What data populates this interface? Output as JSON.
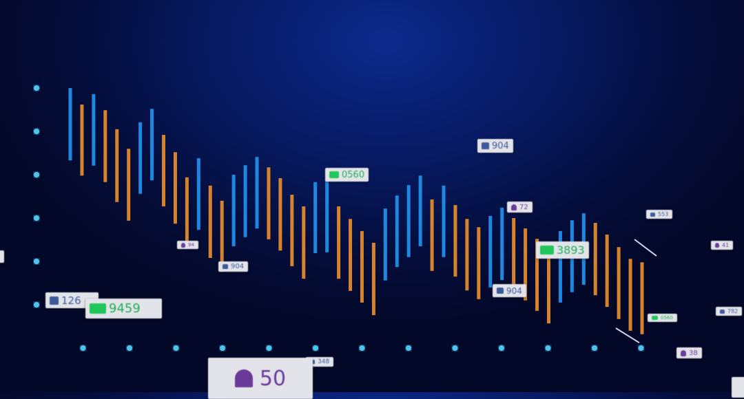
{
  "colors": {
    "up": "#1e88e0",
    "down": "#d5832c",
    "axis": "#4fc3ee",
    "background": "#050f45"
  },
  "chart_data": {
    "type": "bar",
    "title": "",
    "xlabel": "",
    "ylabel": "",
    "grid": false,
    "x_ticks": 13,
    "y_ticks": 6,
    "ylim": [
      0,
      7
    ],
    "bars": [
      {
        "color": "blue",
        "low": 4.33,
        "high": 6.0
      },
      {
        "color": "orange",
        "low": 3.98,
        "high": 5.62
      },
      {
        "color": "blue",
        "low": 4.21,
        "high": 5.86
      },
      {
        "color": "orange",
        "low": 3.83,
        "high": 5.49
      },
      {
        "color": "orange",
        "low": 3.37,
        "high": 5.05
      },
      {
        "color": "orange",
        "low": 2.94,
        "high": 4.6
      },
      {
        "color": "blue",
        "low": 3.56,
        "high": 5.21
      },
      {
        "color": "blue",
        "low": 3.87,
        "high": 5.52
      },
      {
        "color": "orange",
        "low": 3.27,
        "high": 4.92
      },
      {
        "color": "orange",
        "low": 2.87,
        "high": 4.52
      },
      {
        "color": "orange",
        "low": 2.44,
        "high": 3.94
      },
      {
        "color": "blue",
        "low": 2.73,
        "high": 4.38
      },
      {
        "color": "orange",
        "low": 2.08,
        "high": 3.75
      },
      {
        "color": "orange",
        "low": 1.76,
        "high": 3.4
      },
      {
        "color": "blue",
        "low": 2.35,
        "high": 4.0
      },
      {
        "color": "blue",
        "low": 2.56,
        "high": 4.22
      },
      {
        "color": "blue",
        "low": 2.76,
        "high": 4.41
      },
      {
        "color": "orange",
        "low": 2.51,
        "high": 4.17
      },
      {
        "color": "orange",
        "low": 2.25,
        "high": 3.92
      },
      {
        "color": "orange",
        "low": 1.89,
        "high": 3.54
      },
      {
        "color": "orange",
        "low": 1.6,
        "high": 3.27
      },
      {
        "color": "blue",
        "low": 2.19,
        "high": 3.83
      },
      {
        "color": "blue",
        "low": 2.21,
        "high": 3.87
      },
      {
        "color": "orange",
        "low": 1.6,
        "high": 3.27
      },
      {
        "color": "orange",
        "low": 1.32,
        "high": 2.98
      },
      {
        "color": "orange",
        "low": 1.05,
        "high": 2.7
      },
      {
        "color": "orange",
        "low": 0.76,
        "high": 2.43
      },
      {
        "color": "blue",
        "low": 1.56,
        "high": 3.22
      },
      {
        "color": "blue",
        "low": 1.87,
        "high": 3.52
      },
      {
        "color": "blue",
        "low": 2.1,
        "high": 3.76
      },
      {
        "color": "blue",
        "low": 2.35,
        "high": 3.98
      },
      {
        "color": "orange",
        "low": 1.78,
        "high": 3.43
      },
      {
        "color": "blue",
        "low": 2.1,
        "high": 3.75
      },
      {
        "color": "orange",
        "low": 1.65,
        "high": 3.3
      },
      {
        "color": "orange",
        "low": 1.33,
        "high": 2.98
      },
      {
        "color": "orange",
        "low": 1.13,
        "high": 2.79
      },
      {
        "color": "blue",
        "low": 1.4,
        "high": 3.05
      },
      {
        "color": "blue",
        "low": 1.57,
        "high": 3.24
      },
      {
        "color": "orange",
        "low": 1.37,
        "high": 3.0
      },
      {
        "color": "orange",
        "low": 1.1,
        "high": 2.76
      },
      {
        "color": "orange",
        "low": 0.86,
        "high": 2.52
      },
      {
        "color": "orange",
        "low": 0.57,
        "high": 2.24
      },
      {
        "color": "blue",
        "low": 1.05,
        "high": 2.7
      },
      {
        "color": "blue",
        "low": 1.29,
        "high": 2.95
      },
      {
        "color": "blue",
        "low": 1.46,
        "high": 3.11
      },
      {
        "color": "orange",
        "low": 1.22,
        "high": 2.89
      },
      {
        "color": "orange",
        "low": 0.95,
        "high": 2.62
      },
      {
        "color": "orange",
        "low": 0.67,
        "high": 2.33
      },
      {
        "color": "orange",
        "low": 0.4,
        "high": 2.06
      },
      {
        "color": "orange",
        "low": 0.32,
        "high": 1.98
      }
    ]
  },
  "badges": {
    "likes_904_top": {
      "icon": "thumbs-up-icon",
      "value": "904"
    },
    "comments_0560": {
      "icon": "comment-icon",
      "value": "0560"
    },
    "followers_72": {
      "icon": "user-icon",
      "value": "72"
    },
    "comments_3893": {
      "icon": "comment-icon",
      "value": "3893"
    },
    "likes_904_mid": {
      "icon": "thumbs-up-icon",
      "value": "904"
    },
    "likes_553": {
      "icon": "thumbs-up-icon",
      "value": "553"
    },
    "followers_41": {
      "icon": "user-icon",
      "value": "41"
    },
    "likes_782": {
      "icon": "thumbs-up-icon",
      "value": "782"
    },
    "comments_small": {
      "icon": "comment-icon",
      "value": "0560"
    },
    "followers_38": {
      "icon": "user-icon",
      "value": "38"
    },
    "followers_94": {
      "icon": "user-icon",
      "value": "94"
    },
    "likes_904_low": {
      "icon": "thumbs-up-icon",
      "value": "904"
    },
    "likes_126": {
      "icon": "thumbs-up-icon",
      "value": "126"
    },
    "comments_9459": {
      "icon": "comment-icon",
      "value": "9459"
    },
    "likes_348": {
      "icon": "thumbs-up-icon",
      "value": "348"
    },
    "followers_50": {
      "icon": "add-user-icon",
      "value": "50"
    }
  }
}
